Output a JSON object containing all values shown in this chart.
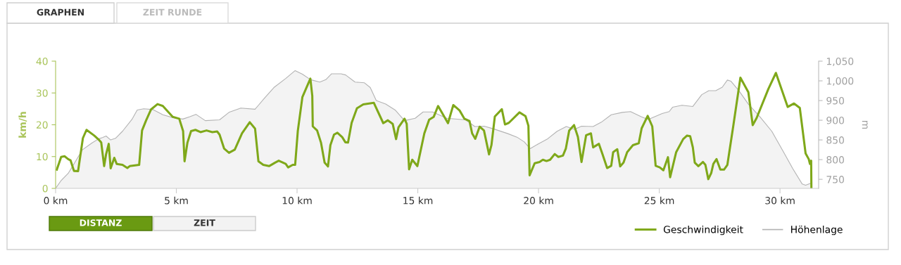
{
  "chart_data": {
    "type": "line",
    "xlabel": null,
    "ylabel": "km/h",
    "y2label": "m",
    "annotations": [
      "GRAPHEN",
      "ZEIT RUNDE",
      "DISTANZ",
      "ZEIT"
    ],
    "xlim": [
      0,
      31.6
    ],
    "xticks": [
      {
        "value": 0,
        "label": "0 km"
      },
      {
        "value": 5,
        "label": "5 km"
      },
      {
        "value": 10,
        "label": "10 km"
      },
      {
        "value": 15,
        "label": "15 km"
      },
      {
        "value": 20,
        "label": "20 km"
      },
      {
        "value": 25,
        "label": "25 km"
      },
      {
        "value": 30,
        "label": "30 km"
      }
    ],
    "ylim": [
      0,
      40
    ],
    "yticks": [
      0,
      10,
      20,
      30,
      40
    ],
    "y2lim": [
      727,
      1050
    ],
    "y2ticks": [
      750,
      800,
      850,
      900,
      950,
      {
        "value": 1000,
        "label": "1,000"
      },
      {
        "value": 1050,
        "label": "1,050"
      }
    ],
    "grid": false,
    "legend": "bottom right",
    "marker": "none",
    "line_style": "solid",
    "series": [
      {
        "name": "Höhenlage",
        "type": "area",
        "axis": "y2",
        "color": "#b3b3b3",
        "x": [
          0,
          0.23,
          0.52,
          0.76,
          1.11,
          1.5,
          1.79,
          1.94,
          2.09,
          2.28,
          2.48,
          2.77,
          3.16,
          3.38,
          3.65,
          4.04,
          4.44,
          4.83,
          5.27,
          5.56,
          5.81,
          6.2,
          6.79,
          7.18,
          7.67,
          8.26,
          8.4,
          8.65,
          9.04,
          9.53,
          9.92,
          10.22,
          10.56,
          10.94,
          11.19,
          11.43,
          11.82,
          12.01,
          12.4,
          12.79,
          13.03,
          13.28,
          13.67,
          14.06,
          14.45,
          14.89,
          15.22,
          15.61,
          16.2,
          16.98,
          17.36,
          17.75,
          18.14,
          18.73,
          19.11,
          19.41,
          19.65,
          19.99,
          20.38,
          20.77,
          21.15,
          21.49,
          21.78,
          22.26,
          22.6,
          23.01,
          23.47,
          23.81,
          24.25,
          24.54,
          25.12,
          25.41,
          25.55,
          25.94,
          26.39,
          26.76,
          27.05,
          27.34,
          27.61,
          27.82,
          27.97,
          28.31,
          28.69,
          29.18,
          29.66,
          30.15,
          30.53,
          30.92,
          31.06,
          31.31
        ],
        "values": [
          727,
          747,
          765,
          789,
          825,
          842,
          853,
          856,
          860,
          850,
          854,
          872,
          902,
          926,
          929,
          927,
          914,
          907,
          903,
          909,
          915,
          899,
          901,
          920,
          931,
          928,
          938,
          956,
          983,
          1006,
          1026,
          1017,
          1003,
          997,
          1003,
          1018,
          1018,
          1015,
          997,
          995,
          983,
          950,
          941,
          926,
          899,
          905,
          921,
          921,
          905,
          901,
          884,
          885,
          878,
          866,
          857,
          845,
          828,
          840,
          853,
          872,
          884,
          877,
          885,
          884,
          895,
          914,
          920,
          922,
          909,
          902,
          917,
          922,
          933,
          938,
          935,
          965,
          975,
          975,
          984,
          1002,
          999,
          974,
          941,
          908,
          872,
          819,
          777,
          738,
          735,
          741
        ]
      },
      {
        "name": "Geschwindigkeit",
        "axis": "y",
        "color": "#7fa81a",
        "x": [
          0.05,
          0.23,
          0.37,
          0.52,
          0.62,
          0.76,
          0.93,
          1.13,
          1.28,
          1.6,
          1.79,
          1.89,
          2.01,
          2.09,
          2.2,
          2.28,
          2.43,
          2.53,
          2.77,
          2.97,
          3.07,
          3.46,
          3.58,
          3.75,
          3.95,
          4.22,
          4.44,
          4.85,
          5.12,
          5.28,
          5.34,
          5.46,
          5.61,
          5.79,
          6.0,
          6.25,
          6.49,
          6.69,
          6.79,
          6.98,
          7.18,
          7.42,
          7.72,
          8.04,
          8.26,
          8.4,
          8.6,
          8.84,
          9.09,
          9.24,
          9.53,
          9.63,
          9.82,
          9.92,
          10.03,
          10.22,
          10.55,
          10.63,
          10.65,
          10.83,
          10.99,
          11.14,
          11.28,
          11.38,
          11.53,
          11.67,
          11.87,
          12.0,
          12.11,
          12.26,
          12.48,
          12.74,
          13.18,
          13.57,
          13.76,
          13.96,
          14.1,
          14.2,
          14.45,
          14.54,
          14.64,
          14.77,
          14.98,
          15.27,
          15.47,
          15.66,
          15.84,
          16.1,
          16.25,
          16.47,
          16.73,
          16.93,
          17.14,
          17.25,
          17.38,
          17.56,
          17.74,
          17.95,
          18.05,
          18.19,
          18.48,
          18.61,
          18.77,
          19.21,
          19.46,
          19.58,
          19.63,
          19.84,
          20.04,
          20.18,
          20.33,
          20.48,
          20.67,
          20.82,
          21.01,
          21.13,
          21.27,
          21.47,
          21.63,
          21.78,
          21.97,
          22.17,
          22.26,
          22.5,
          22.65,
          22.84,
          23.01,
          23.09,
          23.26,
          23.38,
          23.52,
          23.67,
          23.91,
          24.15,
          24.27,
          24.52,
          24.71,
          24.85,
          25.02,
          25.17,
          25.36,
          25.45,
          25.7,
          25.99,
          26.15,
          26.28,
          26.39,
          26.47,
          26.62,
          26.81,
          26.91,
          27.03,
          27.15,
          27.24,
          27.37,
          27.53,
          27.68,
          27.82,
          28.07,
          28.36,
          28.69,
          28.87,
          29.03,
          29.52,
          29.83,
          30.32,
          30.58,
          30.82,
          31.06,
          31.19,
          31.24,
          31.29,
          31.3
        ],
        "values": [
          5.9,
          9.9,
          10.1,
          9.2,
          8.8,
          5.5,
          5.4,
          15.8,
          18.4,
          16.6,
          15.3,
          14.4,
          7.0,
          10.7,
          14.0,
          6.3,
          9.6,
          7.7,
          7.4,
          6.4,
          7.0,
          7.4,
          18.2,
          21.4,
          24.8,
          26.5,
          25.9,
          22.5,
          21.9,
          18.0,
          8.5,
          14.4,
          18.0,
          18.4,
          17.7,
          18.2,
          17.7,
          17.9,
          16.9,
          12.5,
          11.2,
          12.2,
          17.3,
          20.8,
          18.8,
          8.5,
          7.4,
          7.0,
          8.1,
          8.7,
          7.7,
          6.6,
          7.4,
          7.4,
          18.0,
          28.7,
          34.5,
          29.1,
          19.5,
          18.2,
          14.4,
          8.1,
          6.9,
          13.6,
          16.9,
          17.5,
          16.1,
          14.5,
          14.4,
          20.6,
          25.2,
          26.4,
          26.9,
          20.5,
          21.4,
          20.3,
          15.5,
          19.2,
          21.9,
          20.3,
          6.0,
          9.0,
          7.0,
          17.3,
          21.6,
          22.5,
          25.9,
          22.5,
          20.5,
          26.2,
          24.5,
          21.9,
          21.2,
          17.3,
          15.6,
          19.4,
          18.2,
          10.7,
          13.6,
          22.6,
          24.9,
          20.1,
          20.6,
          23.9,
          22.7,
          19.7,
          4.1,
          7.9,
          8.3,
          9.0,
          8.6,
          9.0,
          10.8,
          9.9,
          10.3,
          12.5,
          18.2,
          19.9,
          16.2,
          8.3,
          16.7,
          17.3,
          12.9,
          14.0,
          10.7,
          6.4,
          7.1,
          11.4,
          12.3,
          6.9,
          8.1,
          11.4,
          13.6,
          14.2,
          18.9,
          22.8,
          19.5,
          7.1,
          6.6,
          5.7,
          9.8,
          3.5,
          11.4,
          15.5,
          16.6,
          16.4,
          12.9,
          8.1,
          7.0,
          8.3,
          7.4,
          2.9,
          4.8,
          7.7,
          9.2,
          5.9,
          5.9,
          7.4,
          19.9,
          34.8,
          30.2,
          19.9,
          22.1,
          31.3,
          36.3,
          25.6,
          26.7,
          25.3,
          11.0,
          9.2,
          7.7,
          8.7,
          0
        ]
      }
    ]
  }
}
